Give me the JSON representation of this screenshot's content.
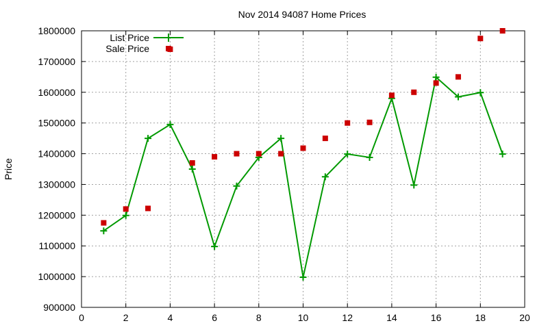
{
  "chart_data": {
    "type": "line",
    "title": "Nov 2014 94087 Home Prices",
    "xlabel": "",
    "ylabel": "Price",
    "xlim": [
      0,
      20
    ],
    "ylim": [
      900000,
      1800000
    ],
    "xticks": [
      0,
      2,
      4,
      6,
      8,
      10,
      12,
      14,
      16,
      18,
      20
    ],
    "yticks": [
      900000,
      1000000,
      1100000,
      1200000,
      1300000,
      1400000,
      1500000,
      1600000,
      1700000,
      1800000
    ],
    "grid": true,
    "legend_position": "top-left",
    "series": [
      {
        "name": "List Price",
        "style": "line with plus markers",
        "color": "#009900",
        "x": [
          1,
          2,
          3,
          4,
          5,
          6,
          7,
          8,
          9,
          10,
          11,
          12,
          13,
          14,
          15,
          16,
          17,
          18,
          19
        ],
        "values": [
          1149000,
          1199000,
          1450000,
          1495000,
          1350000,
          1098000,
          1295000,
          1388000,
          1450000,
          998000,
          1325000,
          1399000,
          1388000,
          1580000,
          1298000,
          1649000,
          1585000,
          1599000,
          1399000
        ]
      },
      {
        "name": "Sale Price",
        "style": "square markers",
        "color": "#cc0000",
        "x": [
          1,
          2,
          3,
          4,
          5,
          6,
          7,
          8,
          9,
          10,
          11,
          12,
          13,
          14,
          15,
          16,
          17,
          18,
          19
        ],
        "values": [
          1175000,
          1220000,
          1222000,
          1740000,
          1370000,
          1390000,
          1400000,
          1400000,
          1400000,
          1418000,
          1450000,
          1500000,
          1502000,
          1590000,
          1600000,
          1630000,
          1650000,
          1775000,
          1800000
        ]
      }
    ]
  }
}
